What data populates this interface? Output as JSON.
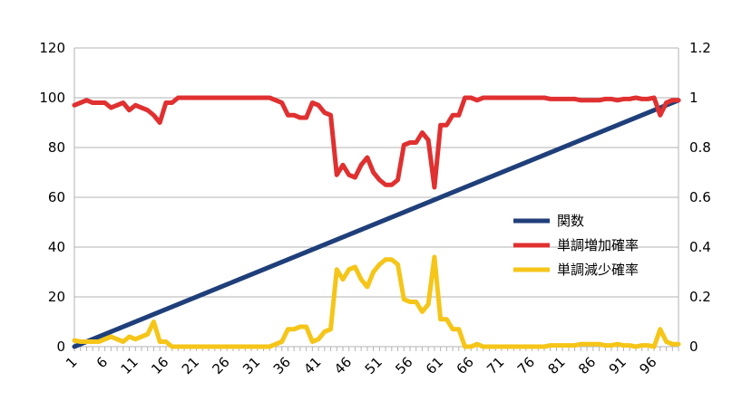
{
  "chart_data": {
    "type": "line",
    "x": [
      1,
      2,
      3,
      4,
      5,
      6,
      7,
      8,
      9,
      10,
      11,
      12,
      13,
      14,
      15,
      16,
      17,
      18,
      19,
      20,
      21,
      22,
      23,
      24,
      25,
      26,
      27,
      28,
      29,
      30,
      31,
      32,
      33,
      34,
      35,
      36,
      37,
      38,
      39,
      40,
      41,
      42,
      43,
      44,
      45,
      46,
      47,
      48,
      49,
      50,
      51,
      52,
      53,
      54,
      55,
      56,
      57,
      58,
      59,
      60,
      61,
      62,
      63,
      64,
      65,
      66,
      67,
      68,
      69,
      70,
      71,
      72,
      73,
      74,
      75,
      76,
      77,
      78,
      79,
      80,
      81,
      82,
      83,
      84,
      85,
      86,
      87,
      88,
      89,
      90,
      91,
      92,
      93,
      94,
      95,
      96,
      97,
      98,
      99,
      100
    ],
    "x_tick_labels": [
      "1",
      "6",
      "11",
      "16",
      "21",
      "26",
      "31",
      "36",
      "41",
      "46",
      "51",
      "56",
      "61",
      "66",
      "71",
      "76",
      "81",
      "86",
      "91",
      "96"
    ],
    "y_left_range": [
      0,
      120
    ],
    "y_left_ticks": [
      "0",
      "20",
      "40",
      "60",
      "80",
      "100",
      "120"
    ],
    "y_right_range": [
      0,
      1.2
    ],
    "y_right_ticks": [
      "0",
      "0.2",
      "0.4",
      "0.6",
      "0.8",
      "1",
      "1.2"
    ],
    "grid": true,
    "legend_position": "right",
    "series": [
      {
        "name": "関数",
        "axis": "left",
        "color": "#1f3f7a",
        "values": [
          0,
          1,
          2,
          3,
          4,
          5,
          6,
          7,
          8,
          9,
          10,
          11,
          12,
          13,
          14,
          15,
          16,
          17,
          18,
          19,
          20,
          21,
          22,
          23,
          24,
          25,
          26,
          27,
          28,
          29,
          30,
          31,
          32,
          33,
          34,
          35,
          36,
          37,
          38,
          39,
          40,
          41,
          42,
          43,
          44,
          45,
          46,
          47,
          48,
          49,
          50,
          51,
          52,
          53,
          54,
          55,
          56,
          57,
          58,
          59,
          60,
          61,
          62,
          63,
          64,
          65,
          66,
          67,
          68,
          69,
          70,
          71,
          72,
          73,
          74,
          75,
          76,
          77,
          78,
          79,
          80,
          81,
          82,
          83,
          84,
          85,
          86,
          87,
          88,
          89,
          90,
          91,
          92,
          93,
          94,
          95,
          96,
          97,
          98,
          99
        ]
      },
      {
        "name": "単調増加確率",
        "axis": "right",
        "color": "#e03030",
        "values": [
          0.97,
          0.98,
          0.99,
          0.98,
          0.98,
          0.98,
          0.96,
          0.97,
          0.98,
          0.95,
          0.97,
          0.96,
          0.95,
          0.93,
          0.9,
          0.98,
          0.98,
          1.0,
          1.0,
          1.0,
          1.0,
          1.0,
          1.0,
          1.0,
          1.0,
          1.0,
          1.0,
          1.0,
          1.0,
          1.0,
          1.0,
          1.0,
          1.0,
          0.99,
          0.98,
          0.93,
          0.93,
          0.92,
          0.92,
          0.98,
          0.97,
          0.94,
          0.93,
          0.69,
          0.73,
          0.69,
          0.68,
          0.73,
          0.76,
          0.7,
          0.67,
          0.65,
          0.65,
          0.67,
          0.81,
          0.82,
          0.82,
          0.86,
          0.83,
          0.64,
          0.89,
          0.89,
          0.93,
          0.93,
          1.0,
          1.0,
          0.99,
          1.0,
          1.0,
          1.0,
          1.0,
          1.0,
          1.0,
          1.0,
          1.0,
          1.0,
          1.0,
          1.0,
          0.995,
          0.995,
          0.995,
          0.995,
          0.995,
          0.99,
          0.99,
          0.99,
          0.99,
          0.995,
          0.995,
          0.99,
          0.995,
          0.995,
          1.0,
          0.995,
          0.995,
          1.0,
          0.93,
          0.98,
          0.99,
          0.99
        ]
      },
      {
        "name": "単調減少確率",
        "axis": "right",
        "color": "#f5c518",
        "values": [
          0.025,
          0.02,
          0.02,
          0.02,
          0.02,
          0.03,
          0.04,
          0.03,
          0.02,
          0.04,
          0.03,
          0.04,
          0.05,
          0.1,
          0.02,
          0.02,
          0.0,
          0.0,
          0.0,
          0.0,
          0.0,
          0.0,
          0.0,
          0.0,
          0.0,
          0.0,
          0.0,
          0.0,
          0.0,
          0.0,
          0.0,
          0.0,
          0.0,
          0.01,
          0.02,
          0.07,
          0.07,
          0.08,
          0.08,
          0.02,
          0.03,
          0.06,
          0.07,
          0.31,
          0.27,
          0.31,
          0.32,
          0.27,
          0.24,
          0.3,
          0.33,
          0.35,
          0.35,
          0.33,
          0.19,
          0.18,
          0.18,
          0.14,
          0.17,
          0.36,
          0.11,
          0.11,
          0.07,
          0.07,
          0.0,
          0.0,
          0.01,
          0.0,
          0.0,
          0.0,
          0.0,
          0.0,
          0.0,
          0.0,
          0.0,
          0.0,
          0.0,
          0.0,
          0.005,
          0.005,
          0.005,
          0.005,
          0.005,
          0.01,
          0.01,
          0.01,
          0.01,
          0.005,
          0.005,
          0.01,
          0.005,
          0.005,
          0.0,
          0.005,
          0.005,
          0.0,
          0.07,
          0.02,
          0.01,
          0.01
        ]
      }
    ]
  }
}
